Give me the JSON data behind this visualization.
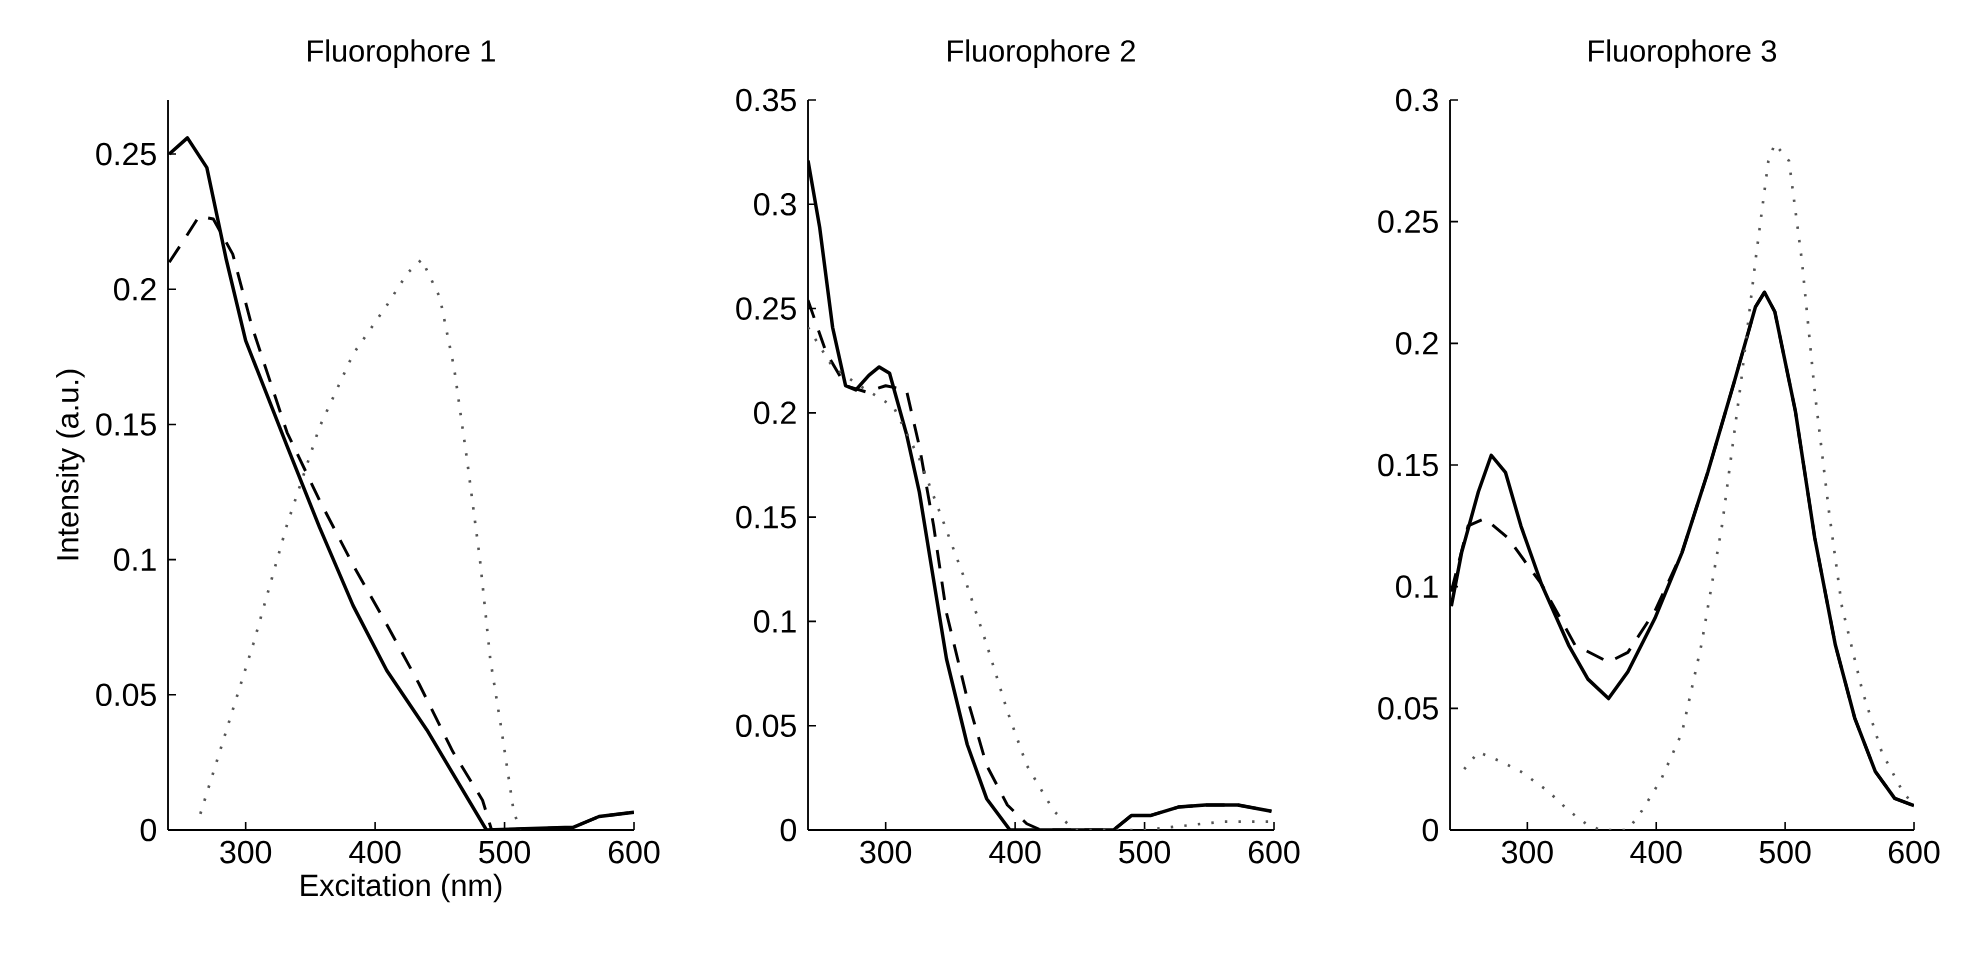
{
  "chart_data": [
    {
      "type": "line",
      "title": "Fluorophore 1",
      "xlabel": "Excitation (nm)",
      "ylabel": "Intensity (a.u.)",
      "xlim": [
        240,
        600
      ],
      "ylim": [
        0,
        0.27
      ],
      "xticks": [
        300,
        400,
        500,
        600
      ],
      "yticks": [
        0,
        0.05,
        0.1,
        0.15,
        0.2,
        0.25
      ],
      "series": [
        {
          "color": "#000000",
          "line_style": "solid",
          "x": [
            241,
            255,
            270,
            285,
            300,
            332,
            357,
            383,
            409,
            440,
            486,
            553,
            573,
            600
          ],
          "values": [
            0.25,
            0.256,
            0.245,
            0.211,
            0.181,
            0.142,
            0.112,
            0.083,
            0.059,
            0.037,
            0,
            0.001,
            0.005,
            0.0066
          ]
        },
        {
          "color": "#000000",
          "line_style": "dashed",
          "x": [
            241,
            252,
            264,
            275,
            290,
            305,
            332,
            357,
            383,
            409,
            434,
            460,
            483,
            490,
            553,
            573,
            600
          ],
          "values": [
            0.21,
            0.218,
            0.227,
            0.226,
            0.213,
            0.186,
            0.147,
            0.122,
            0.098,
            0.076,
            0.054,
            0.029,
            0.011,
            0,
            0.001,
            0.005,
            0.0066
          ]
        },
        {
          "color": "#555555",
          "line_style": "dotted",
          "x": [
            265,
            280,
            306,
            332,
            357,
            383,
            409,
            425,
            436,
            450,
            461,
            471,
            481,
            489,
            497,
            507,
            512
          ],
          "values": [
            0.006,
            0.029,
            0.069,
            0.113,
            0.149,
            0.176,
            0.194,
            0.206,
            0.211,
            0.197,
            0.171,
            0.137,
            0.1,
            0.063,
            0.039,
            0.007,
            0
          ]
        }
      ]
    },
    {
      "type": "line",
      "title": "Fluorophore 2",
      "xlim": [
        240,
        600
      ],
      "ylim": [
        0,
        0.35
      ],
      "xticks": [
        300,
        400,
        500,
        600
      ],
      "yticks": [
        0,
        0.05,
        0.1,
        0.15,
        0.2,
        0.25,
        0.3,
        0.35
      ],
      "series": [
        {
          "color": "#000000",
          "line_style": "solid",
          "x": [
            240,
            249,
            259,
            269,
            277,
            287,
            295,
            303,
            316,
            326,
            337,
            347,
            363,
            378,
            396,
            476,
            490,
            505,
            526,
            547,
            572,
            598
          ],
          "values": [
            0.321,
            0.289,
            0.241,
            0.213,
            0.211,
            0.218,
            0.222,
            0.219,
            0.19,
            0.162,
            0.12,
            0.082,
            0.041,
            0.015,
            0,
            0,
            0.007,
            0.007,
            0.011,
            0.012,
            0.012,
            0.009
          ]
        },
        {
          "color": "#000000",
          "line_style": "dashed",
          "x": [
            240,
            254,
            269,
            285,
            300,
            316,
            326,
            337,
            347,
            363,
            378,
            394,
            409,
            420,
            476,
            490,
            505,
            526,
            547,
            572,
            598
          ],
          "values": [
            0.254,
            0.229,
            0.213,
            0.21,
            0.213,
            0.211,
            0.184,
            0.146,
            0.104,
            0.063,
            0.031,
            0.012,
            0.003,
            0,
            0,
            0.007,
            0.007,
            0.011,
            0.012,
            0.012,
            0.009
          ]
        },
        {
          "color": "#555555",
          "line_style": "dotted",
          "x": [
            240,
            259,
            280,
            306,
            326,
            342,
            363,
            378,
            394,
            409,
            430,
            446,
            500,
            560,
            600
          ],
          "values": [
            0.241,
            0.222,
            0.213,
            0.203,
            0.178,
            0.152,
            0.117,
            0.089,
            0.057,
            0.031,
            0.009,
            0,
            0,
            0.004,
            0.004
          ]
        }
      ]
    },
    {
      "type": "line",
      "title": "Fluorophore 3",
      "xlim": [
        240,
        600
      ],
      "ylim": [
        0,
        0.3
      ],
      "xticks": [
        300,
        400,
        500,
        600
      ],
      "yticks": [
        0,
        0.05,
        0.1,
        0.15,
        0.2,
        0.25,
        0.3
      ],
      "series": [
        {
          "color": "#000000",
          "line_style": "solid",
          "x": [
            241,
            249,
            262,
            272,
            283,
            295,
            311,
            332,
            347,
            363,
            378,
            399,
            420,
            440,
            461,
            477,
            484,
            492,
            508,
            523,
            539,
            554,
            570,
            585,
            600
          ],
          "values": [
            0.092,
            0.114,
            0.139,
            0.154,
            0.147,
            0.125,
            0.101,
            0.076,
            0.062,
            0.054,
            0.065,
            0.087,
            0.114,
            0.147,
            0.185,
            0.215,
            0.221,
            0.213,
            0.172,
            0.12,
            0.076,
            0.046,
            0.024,
            0.013,
            0.01
          ]
        },
        {
          "color": "#000000",
          "line_style": "dashed",
          "x": [
            241,
            254,
            267,
            285,
            311,
            337,
            363,
            378,
            399,
            420,
            440,
            461,
            477,
            484,
            492,
            508,
            523,
            539,
            554,
            570,
            585,
            600
          ],
          "values": [
            0.098,
            0.125,
            0.128,
            0.12,
            0.101,
            0.076,
            0.069,
            0.073,
            0.09,
            0.114,
            0.147,
            0.185,
            0.215,
            0.221,
            0.213,
            0.172,
            0.12,
            0.076,
            0.046,
            0.024,
            0.013,
            0.01
          ]
        },
        {
          "color": "#555555",
          "line_style": "dotted",
          "x": [
            251,
            262,
            280,
            295,
            316,
            332,
            347,
            357,
            378,
            389,
            404,
            420,
            435,
            451,
            466,
            477,
            487,
            492,
            503,
            513,
            523,
            534,
            544,
            560,
            575,
            591,
            600
          ],
          "values": [
            0.025,
            0.032,
            0.028,
            0.024,
            0.016,
            0.008,
            0.002,
            0,
            0,
            0.008,
            0.021,
            0.04,
            0.076,
            0.125,
            0.185,
            0.234,
            0.275,
            0.282,
            0.275,
            0.234,
            0.18,
            0.131,
            0.092,
            0.057,
            0.032,
            0.016,
            0.01
          ]
        }
      ]
    }
  ]
}
